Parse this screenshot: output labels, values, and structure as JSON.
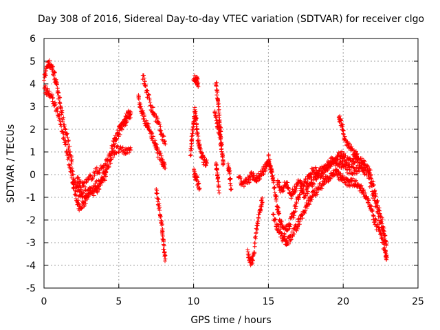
{
  "chart_data": {
    "type": "scatter",
    "title": "Day 308 of 2016, Sidereal Day-to-day VTEC variation (SDTVAR) for receiver clgo",
    "xlabel": "GPS time / hours",
    "ylabel": "SDTVAR / TECUs",
    "xlim": [
      0,
      25
    ],
    "ylim": [
      -5,
      6
    ],
    "xticks": [
      0,
      5,
      10,
      15,
      20,
      25
    ],
    "yticks": [
      -5,
      -4,
      -3,
      -2,
      -1,
      0,
      1,
      2,
      3,
      4,
      5,
      6
    ],
    "grid": true,
    "marker": "+",
    "color": "#ff0000",
    "series": [
      {
        "name": "SDTVAR",
        "segments": [
          [
            [
              0.0,
              4.2
            ],
            [
              0.2,
              4.8
            ],
            [
              0.4,
              4.9
            ],
            [
              0.6,
              4.6
            ],
            [
              0.8,
              4.1
            ],
            [
              1.0,
              3.4
            ],
            [
              1.2,
              2.6
            ],
            [
              1.5,
              1.8
            ],
            [
              1.8,
              0.8
            ],
            [
              2.0,
              -0.3
            ],
            [
              2.3,
              -0.8
            ],
            [
              2.6,
              -0.9
            ],
            [
              3.0,
              -0.7
            ],
            [
              3.4,
              -0.5
            ],
            [
              3.8,
              -0.3
            ],
            [
              4.2,
              0.3
            ],
            [
              4.6,
              1.3
            ],
            [
              5.0,
              2.0
            ],
            [
              5.3,
              2.3
            ],
            [
              5.6,
              2.7
            ],
            [
              5.8,
              2.6
            ]
          ],
          [
            [
              0.0,
              3.8
            ],
            [
              0.3,
              3.6
            ],
            [
              0.6,
              3.3
            ],
            [
              0.9,
              2.8
            ],
            [
              1.2,
              2.0
            ],
            [
              1.5,
              1.2
            ],
            [
              1.8,
              0.0
            ],
            [
              2.1,
              -0.9
            ],
            [
              2.4,
              -1.5
            ],
            [
              2.7,
              -1.2
            ],
            [
              3.0,
              -0.9
            ],
            [
              3.5,
              -0.7
            ],
            [
              4.0,
              -0.2
            ],
            [
              4.4,
              0.6
            ],
            [
              4.8,
              1.6
            ],
            [
              5.2,
              2.1
            ],
            [
              5.6,
              2.4
            ]
          ],
          [
            [
              2.2,
              -0.2
            ],
            [
              2.5,
              -0.5
            ],
            [
              2.9,
              -0.3
            ],
            [
              3.4,
              0.1
            ],
            [
              3.9,
              0.3
            ],
            [
              4.4,
              0.8
            ],
            [
              4.9,
              1.1
            ],
            [
              5.4,
              1.0
            ],
            [
              5.8,
              1.2
            ]
          ],
          [
            [
              6.3,
              3.4
            ],
            [
              6.5,
              2.8
            ],
            [
              6.8,
              2.3
            ],
            [
              7.1,
              1.9
            ],
            [
              7.4,
              1.4
            ],
            [
              7.6,
              1.0
            ],
            [
              7.9,
              0.6
            ],
            [
              8.1,
              0.4
            ]
          ],
          [
            [
              6.6,
              4.4
            ],
            [
              6.9,
              3.6
            ],
            [
              7.2,
              2.9
            ],
            [
              7.5,
              2.5
            ],
            [
              7.8,
              1.9
            ],
            [
              8.1,
              1.4
            ]
          ],
          [
            [
              7.5,
              -0.7
            ],
            [
              7.7,
              -1.5
            ],
            [
              7.9,
              -2.4
            ],
            [
              8.0,
              -3.2
            ],
            [
              8.1,
              -3.7
            ]
          ],
          [
            [
              9.8,
              1.0
            ],
            [
              9.9,
              1.6
            ],
            [
              10.0,
              2.3
            ],
            [
              10.1,
              2.8
            ],
            [
              10.2,
              2.2
            ],
            [
              10.3,
              1.5
            ],
            [
              10.5,
              0.9
            ],
            [
              10.7,
              0.6
            ],
            [
              10.9,
              0.5
            ]
          ],
          [
            [
              10.0,
              0.1
            ],
            [
              10.2,
              -0.2
            ],
            [
              10.4,
              -0.6
            ]
          ],
          [
            [
              10.0,
              4.3
            ],
            [
              10.2,
              4.2
            ],
            [
              10.3,
              4.0
            ]
          ],
          [
            [
              11.5,
              4.2
            ],
            [
              11.6,
              3.4
            ],
            [
              11.7,
              2.6
            ],
            [
              11.8,
              1.8
            ],
            [
              11.9,
              1.0
            ],
            [
              12.0,
              0.5
            ]
          ],
          [
            [
              11.4,
              2.8
            ],
            [
              11.6,
              2.2
            ],
            [
              11.8,
              1.5
            ]
          ],
          [
            [
              11.5,
              0.5
            ],
            [
              11.6,
              0.0
            ],
            [
              11.7,
              -0.7
            ]
          ],
          [
            [
              12.3,
              0.4
            ],
            [
              12.4,
              0.0
            ],
            [
              12.5,
              -0.6
            ]
          ],
          [
            [
              13.0,
              -0.2
            ],
            [
              13.3,
              -0.4
            ],
            [
              13.6,
              -0.3
            ],
            [
              13.9,
              0.0
            ],
            [
              14.2,
              -0.2
            ],
            [
              14.5,
              0.0
            ],
            [
              14.8,
              0.3
            ],
            [
              15.0,
              0.6
            ],
            [
              15.2,
              0.2
            ]
          ],
          [
            [
              13.6,
              -3.4
            ],
            [
              13.8,
              -3.9
            ],
            [
              14.0,
              -3.6
            ],
            [
              14.2,
              -2.4
            ],
            [
              14.4,
              -1.6
            ],
            [
              14.6,
              -1.1
            ]
          ],
          [
            [
              15.0,
              0.8
            ],
            [
              15.2,
              0.2
            ],
            [
              15.4,
              -0.6
            ],
            [
              15.6,
              -1.4
            ],
            [
              15.8,
              -2.1
            ],
            [
              16.1,
              -2.5
            ],
            [
              16.4,
              -2.2
            ],
            [
              16.7,
              -1.7
            ],
            [
              17.0,
              -1.0
            ],
            [
              17.3,
              -0.5
            ],
            [
              17.6,
              -0.2
            ],
            [
              17.9,
              0.1
            ],
            [
              18.2,
              0.2
            ],
            [
              18.5,
              0.0
            ],
            [
              18.8,
              0.2
            ],
            [
              19.1,
              0.5
            ],
            [
              19.4,
              0.6
            ],
            [
              19.7,
              0.8
            ],
            [
              20.0,
              0.9
            ],
            [
              20.3,
              0.6
            ],
            [
              20.6,
              0.5
            ],
            [
              20.9,
              0.7
            ],
            [
              21.2,
              0.6
            ],
            [
              21.5,
              0.4
            ],
            [
              21.8,
              0.1
            ],
            [
              22.1,
              -0.8
            ],
            [
              22.4,
              -1.6
            ],
            [
              22.7,
              -2.4
            ],
            [
              22.9,
              -3.2
            ]
          ],
          [
            [
              15.3,
              -1.8
            ],
            [
              15.6,
              -2.3
            ],
            [
              15.9,
              -2.7
            ],
            [
              16.2,
              -3.0
            ],
            [
              16.5,
              -2.8
            ],
            [
              16.8,
              -2.4
            ],
            [
              17.1,
              -2.0
            ],
            [
              17.4,
              -1.6
            ],
            [
              17.7,
              -1.2
            ],
            [
              18.0,
              -0.8
            ],
            [
              18.3,
              -0.7
            ],
            [
              18.6,
              -0.4
            ],
            [
              18.9,
              -0.2
            ],
            [
              19.2,
              0.0
            ],
            [
              19.5,
              0.1
            ],
            [
              19.8,
              -0.1
            ],
            [
              20.1,
              -0.3
            ],
            [
              20.4,
              -0.4
            ],
            [
              20.7,
              -0.3
            ],
            [
              21.0,
              -0.5
            ],
            [
              21.3,
              -0.7
            ],
            [
              21.6,
              -1.0
            ],
            [
              21.9,
              -1.6
            ],
            [
              22.2,
              -2.2
            ],
            [
              22.5,
              -2.6
            ],
            [
              22.8,
              -3.4
            ],
            [
              22.9,
              -3.7
            ]
          ],
          [
            [
              15.6,
              -0.4
            ],
            [
              15.9,
              -0.7
            ],
            [
              16.2,
              -0.4
            ],
            [
              16.5,
              -0.9
            ],
            [
              16.8,
              -0.6
            ],
            [
              17.1,
              -0.3
            ],
            [
              17.4,
              -0.9
            ],
            [
              17.7,
              -0.6
            ],
            [
              18.0,
              -0.3
            ],
            [
              18.4,
              0.1
            ],
            [
              18.8,
              0.3
            ],
            [
              19.2,
              0.6
            ],
            [
              19.6,
              0.5
            ],
            [
              20.0,
              0.4
            ],
            [
              20.4,
              0.2
            ],
            [
              20.8,
              0.2
            ],
            [
              21.2,
              0.3
            ],
            [
              21.6,
              0.1
            ],
            [
              22.0,
              -0.9
            ],
            [
              22.4,
              -1.9
            ],
            [
              22.8,
              -2.8
            ]
          ],
          [
            [
              19.7,
              2.6
            ],
            [
              19.9,
              2.2
            ],
            [
              20.1,
              1.6
            ],
            [
              20.4,
              1.2
            ],
            [
              20.7,
              1.0
            ],
            [
              21.0,
              0.7
            ]
          ]
        ]
      }
    ]
  }
}
